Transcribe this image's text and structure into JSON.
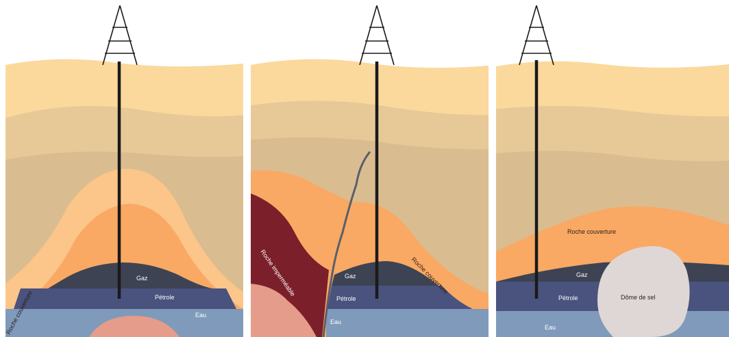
{
  "panels": [
    {
      "id": "anticline",
      "labels": {
        "gas": "Gaz",
        "oil": "Pétrole",
        "water": "Eau",
        "cap_rock": "Roche couverture"
      }
    },
    {
      "id": "fault",
      "labels": {
        "gas": "Gaz",
        "oil": "Pétrole",
        "water": "Eau",
        "cap_rock": "Roche couverture",
        "impermeable_rock": "Roche imperméable"
      }
    },
    {
      "id": "salt-dome",
      "labels": {
        "gas": "Gaz",
        "oil": "Pétrole",
        "water": "Eau",
        "cap_rock": "Roche couverture",
        "salt_dome": "Dôme de sel"
      }
    }
  ],
  "colors": {
    "layer_top": "#fbd89c",
    "layer_mid": "#e7c997",
    "layer_low": "#d9bd91",
    "layer_deep": "#cfb38a",
    "cap_light": "#fcc58a",
    "cap_orange": "#f9a964",
    "gas": "#3d4353",
    "oil": "#4a527e",
    "water": "#7f9aba",
    "pink_rock": "#e59c8a",
    "impermeable": "#7b1f2a",
    "salt": "#dfd7d5",
    "fault_line": "#5b5f69",
    "derrick": "#1a1a1a"
  }
}
